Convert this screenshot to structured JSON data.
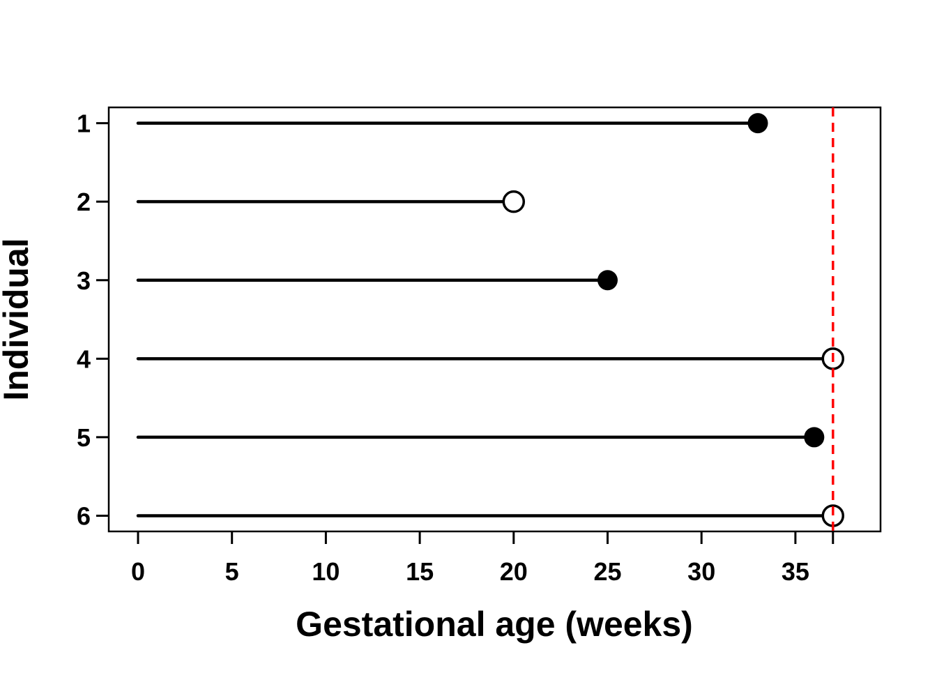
{
  "figure": {
    "background": "#ffffff"
  },
  "chart_data": {
    "type": "line",
    "subtype": "horizontal-event-segments",
    "title": "",
    "xlabel": "Gestational age (weeks)",
    "ylabel": "Individual",
    "xlim": [
      -1.5,
      39.5
    ],
    "ylim": [
      6.2,
      0.8
    ],
    "y_axis_reversed": true,
    "grid": false,
    "legend": "none",
    "x_ticks": [
      0,
      5,
      10,
      15,
      20,
      25,
      30,
      35
    ],
    "x_axis_extra_unlabeled_tick": 37,
    "y_ticks": [
      1,
      2,
      3,
      4,
      5,
      6
    ],
    "individuals": [
      {
        "id": 1,
        "start": 0,
        "end": 33,
        "marker": "filled"
      },
      {
        "id": 2,
        "start": 0,
        "end": 20,
        "marker": "open"
      },
      {
        "id": 3,
        "start": 0,
        "end": 25,
        "marker": "filled"
      },
      {
        "id": 4,
        "start": 0,
        "end": 37,
        "marker": "open"
      },
      {
        "id": 5,
        "start": 0,
        "end": 36,
        "marker": "filled"
      },
      {
        "id": 6,
        "start": 0,
        "end": 37,
        "marker": "open"
      }
    ],
    "reference_line": {
      "x": 37,
      "color": "#ff0000",
      "style": "dashed"
    },
    "colors": {
      "line": "#000000",
      "marker_filled": "#000000",
      "marker_open_fill": "#ffffff",
      "marker_stroke": "#000000",
      "box": "#000000",
      "reference": "#ff0000"
    }
  }
}
